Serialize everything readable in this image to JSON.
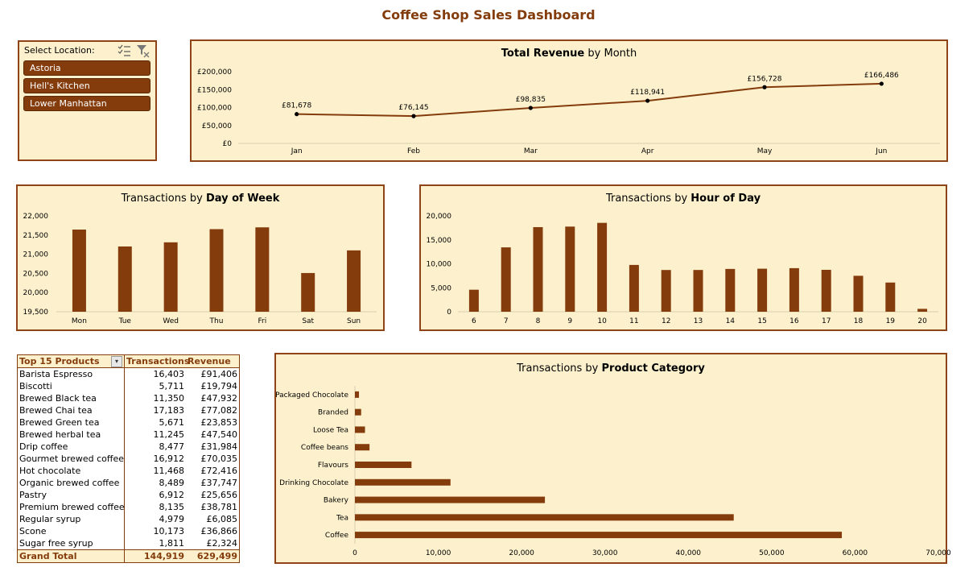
{
  "dashboard": {
    "title": "Coffee Shop Sales Dashboard"
  },
  "colors": {
    "accent": "#843c0c",
    "panel_bg": "#fdf1cd",
    "border": "#8e4416"
  },
  "slicer": {
    "label": "Select Location:",
    "icons": [
      "multi-select-icon",
      "clear-filter-icon"
    ],
    "items": [
      "Astoria",
      "Hell's Kitchen",
      "Lower Manhattan"
    ]
  },
  "revenue_chart": {
    "title_bold": "Total Revenue",
    "title_rest": " by Month",
    "chart_data": {
      "type": "line",
      "categories": [
        "Jan",
        "Feb",
        "Mar",
        "Apr",
        "May",
        "Jun"
      ],
      "values": [
        81678,
        76145,
        98835,
        118941,
        156728,
        166486
      ],
      "value_labels": [
        "£81,678",
        "£76,145",
        "£98,835",
        "£118,941",
        "£156,728",
        "£166,486"
      ],
      "ylim": [
        0,
        200000
      ],
      "yticks": [
        0,
        50000,
        100000,
        150000,
        200000
      ],
      "ytick_labels": [
        "£0",
        "£50,000",
        "£100,000",
        "£150,000",
        "£200,000"
      ]
    }
  },
  "dow_chart": {
    "title_pre": "Transactions by ",
    "title_bold": "Day of Week",
    "chart_data": {
      "type": "bar",
      "categories": [
        "Mon",
        "Tue",
        "Wed",
        "Thu",
        "Fri",
        "Sat",
        "Sun"
      ],
      "values": [
        21643,
        21202,
        21310,
        21654,
        21701,
        20510,
        21100
      ],
      "ylim": [
        19500,
        22000
      ],
      "yticks": [
        19500,
        20000,
        20500,
        21000,
        21500,
        22000
      ],
      "ytick_labels": [
        "19,500",
        "20,000",
        "20,500",
        "21,000",
        "21,500",
        "22,000"
      ]
    }
  },
  "hour_chart": {
    "title_pre": "Transactions by ",
    "title_bold": "Hour of Day",
    "chart_data": {
      "type": "bar",
      "categories": [
        "6",
        "7",
        "8",
        "9",
        "10",
        "11",
        "12",
        "13",
        "14",
        "15",
        "16",
        "17",
        "18",
        "19",
        "20"
      ],
      "values": [
        4594,
        13428,
        17654,
        17764,
        18545,
        9766,
        8708,
        8714,
        8933,
        8979,
        9093,
        8745,
        7498,
        6092,
        603
      ],
      "ylim": [
        0,
        20000
      ],
      "yticks": [
        0,
        5000,
        10000,
        15000,
        20000
      ],
      "ytick_labels": [
        "0",
        "5,000",
        "10,000",
        "15,000",
        "20,000"
      ]
    }
  },
  "products_table": {
    "headers": [
      "Top 15 Products",
      "Transactions",
      "Revenue"
    ],
    "rows": [
      [
        "Barista Espresso",
        "16,403",
        "£91,406"
      ],
      [
        "Biscotti",
        "5,711",
        "£19,794"
      ],
      [
        "Brewed Black tea",
        "11,350",
        "£47,932"
      ],
      [
        "Brewed Chai tea",
        "17,183",
        "£77,082"
      ],
      [
        "Brewed Green tea",
        "5,671",
        "£23,853"
      ],
      [
        "Brewed herbal tea",
        "11,245",
        "£47,540"
      ],
      [
        "Drip coffee",
        "8,477",
        "£31,984"
      ],
      [
        "Gourmet brewed coffee",
        "16,912",
        "£70,035"
      ],
      [
        "Hot chocolate",
        "11,468",
        "£72,416"
      ],
      [
        "Organic brewed coffee",
        "8,489",
        "£37,747"
      ],
      [
        "Pastry",
        "6,912",
        "£25,656"
      ],
      [
        "Premium brewed coffee",
        "8,135",
        "£38,781"
      ],
      [
        "Regular syrup",
        "4,979",
        "£6,085"
      ],
      [
        "Scone",
        "10,173",
        "£36,866"
      ],
      [
        "Sugar free syrup",
        "1,811",
        "£2,324"
      ]
    ],
    "total": [
      "Grand Total",
      "144,919",
      "629,499"
    ]
  },
  "category_chart": {
    "title_pre": "Transactions by ",
    "title_bold": "Product Category",
    "chart_data": {
      "type": "bar",
      "orientation": "horizontal",
      "categories": [
        "Packaged Chocolate",
        "Branded",
        "Loose Tea",
        "Coffee beans",
        "Flavours",
        "Drinking Chocolate",
        "Bakery",
        "Tea",
        "Coffee"
      ],
      "values": [
        487,
        747,
        1210,
        1753,
        6790,
        11468,
        22796,
        45449,
        58416
      ],
      "xlim": [
        0,
        70000
      ],
      "xticks": [
        0,
        10000,
        20000,
        30000,
        40000,
        50000,
        60000,
        70000
      ],
      "xtick_labels": [
        "0",
        "10,000",
        "20,000",
        "30,000",
        "40,000",
        "50,000",
        "60,000",
        "70,000"
      ]
    }
  }
}
